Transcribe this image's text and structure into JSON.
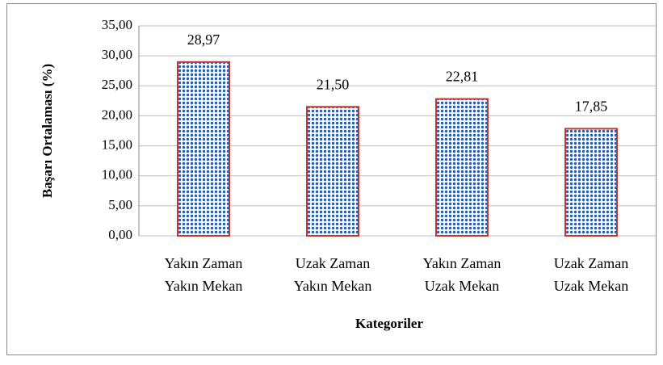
{
  "chart_data": {
    "type": "bar",
    "categories": [
      [
        "Yakın Zaman",
        "Yakın Mekan"
      ],
      [
        "Uzak Zaman",
        "Yakın Mekan"
      ],
      [
        "Yakın Zaman",
        "Uzak Mekan"
      ],
      [
        "Uzak Zaman",
        "Uzak Mekan"
      ]
    ],
    "values": [
      28.97,
      21.5,
      22.81,
      17.85
    ],
    "value_labels": [
      "28,97",
      "21,50",
      "22,81",
      "17,85"
    ],
    "color": "#1f5fbf",
    "edge_color": "#c0392b",
    "x_label": "Kategoriler",
    "y_label": "Başarı Ortalaması (%)",
    "ylim": [
      0,
      35
    ],
    "yticks": [
      {
        "value": 0,
        "label": "0,00"
      },
      {
        "value": 5,
        "label": "5,00"
      },
      {
        "value": 10,
        "label": "10,00"
      },
      {
        "value": 15,
        "label": "15,00"
      },
      {
        "value": 20,
        "label": "20,00"
      },
      {
        "value": 25,
        "label": "25,00"
      },
      {
        "value": 30,
        "label": "30,00"
      },
      {
        "value": 35,
        "label": "35,00"
      }
    ],
    "grid": true
  }
}
